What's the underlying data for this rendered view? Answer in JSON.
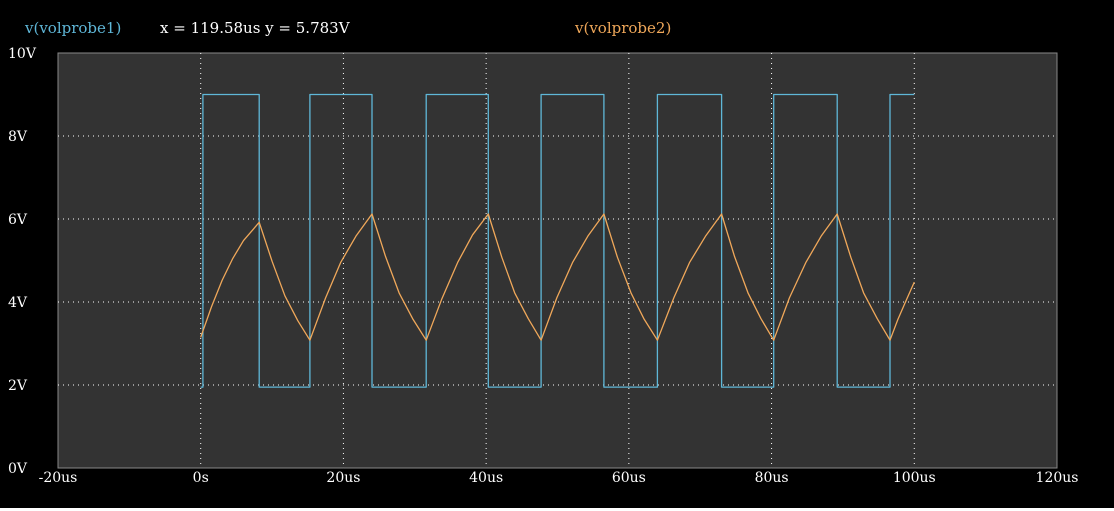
{
  "header": {
    "trace1_label": "v(volprobe1)",
    "cursor_readout": "x = 119.58us y = 5.783V",
    "trace2_label": "v(volprobe2)"
  },
  "colors": {
    "background": "#000000",
    "plot_area": "#333333",
    "grid": "#ffffff",
    "trace1": "#5fb7d8",
    "trace2": "#f0a85a",
    "text": "#ffffff"
  },
  "chart_data": {
    "type": "line",
    "xlim": [
      -20,
      120
    ],
    "ylim": [
      0,
      10
    ],
    "x_unit": "us",
    "y_unit": "V",
    "x_ticks": [
      -20,
      0,
      20,
      40,
      60,
      80,
      100,
      120
    ],
    "x_tick_labels": [
      "-20us",
      "0s",
      "20us",
      "40us",
      "60us",
      "80us",
      "100us",
      "120us"
    ],
    "y_ticks": [
      0,
      2,
      4,
      6,
      8,
      10
    ],
    "y_tick_labels": [
      "0V",
      "2V",
      "4V",
      "6V",
      "8V",
      "10V"
    ],
    "grid": true,
    "grid_style": "dotted",
    "series": [
      {
        "name": "v(volprobe1)",
        "x": [
          0,
          0.3,
          0.3,
          8.2,
          8.2,
          15.3,
          15.3,
          24,
          24,
          31.6,
          31.6,
          40.3,
          40.3,
          47.7,
          47.7,
          56.5,
          56.5,
          64,
          64,
          73,
          73,
          80.3,
          80.3,
          89.2,
          89.2,
          96.6,
          96.6,
          100
        ],
        "y": [
          1.95,
          1.95,
          9.0,
          9.0,
          1.95,
          1.95,
          9.0,
          9.0,
          1.95,
          1.95,
          9.0,
          9.0,
          1.95,
          1.95,
          9.0,
          9.0,
          1.95,
          1.95,
          9.0,
          9.0,
          1.95,
          1.95,
          9.0,
          9.0,
          1.95,
          1.95,
          9.0,
          9.0
        ]
      },
      {
        "name": "v(volprobe2)",
        "x": [
          0,
          1.5,
          3.0,
          4.5,
          6.0,
          8.2,
          10.0,
          11.8,
          13.6,
          15.3,
          17.5,
          19.6,
          21.8,
          24.0,
          25.9,
          27.8,
          29.7,
          31.6,
          33.8,
          36.0,
          38.1,
          40.3,
          42.2,
          44.0,
          45.9,
          47.7,
          49.9,
          52.1,
          54.3,
          56.5,
          58.4,
          60.3,
          62.1,
          64.0,
          66.3,
          68.5,
          70.8,
          73.0,
          74.8,
          76.7,
          78.5,
          80.3,
          82.5,
          84.8,
          87.0,
          89.2,
          91.1,
          92.9,
          94.8,
          96.6,
          97.7,
          98.9,
          100.0
        ],
        "y": [
          3.15,
          3.88,
          4.52,
          5.05,
          5.48,
          5.92,
          4.98,
          4.15,
          3.55,
          3.08,
          4.1,
          4.95,
          5.6,
          6.12,
          5.1,
          4.22,
          3.6,
          3.08,
          4.08,
          4.95,
          5.62,
          6.12,
          5.08,
          4.22,
          3.6,
          3.08,
          4.1,
          4.95,
          5.6,
          6.12,
          5.08,
          4.22,
          3.6,
          3.08,
          4.1,
          4.95,
          5.6,
          6.12,
          5.1,
          4.22,
          3.6,
          3.08,
          4.1,
          4.95,
          5.6,
          6.12,
          5.08,
          4.22,
          3.6,
          3.08,
          3.58,
          4.05,
          4.48
        ]
      }
    ]
  }
}
